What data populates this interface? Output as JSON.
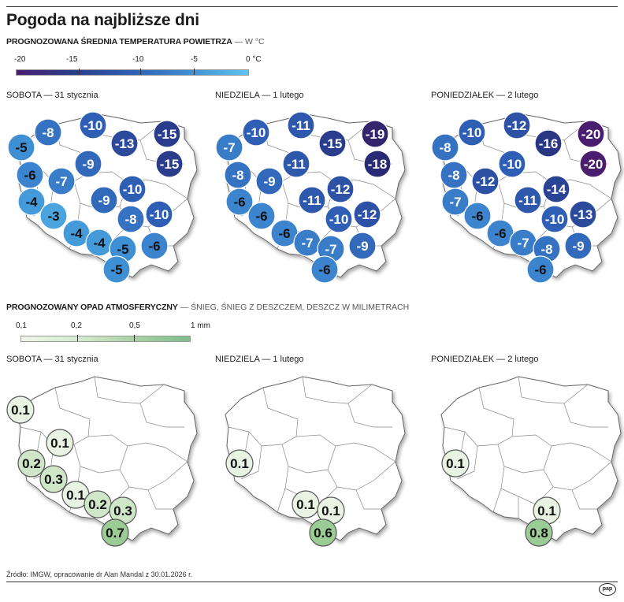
{
  "title": "Pogoda na najbliższe dni",
  "temperature": {
    "heading": "PROGNOZOWANA ŚREDNIA TEMPERATURA POWIETRZA",
    "unit_note": " — W °C",
    "scale_labels": [
      "-20",
      "-15",
      "-10",
      "-5",
      "0 °C"
    ],
    "scale_colors": [
      "#4a1d6e",
      "#2a3c8c",
      "#2f5fb4",
      "#3f8fd4",
      "#5cc4ee"
    ]
  },
  "precipitation": {
    "heading": "PROGNOZOWANY OPAD ATMOSFERYCZNY",
    "unit_note": " — ŚNIEG, ŚNIEG Z DESZCZEM, DESZCZ W MILIMETRACH",
    "scale_labels": [
      "0,1",
      "0,2",
      "0,5",
      "1 mm"
    ],
    "scale_colors": [
      "#eef6ea",
      "#d4ebcf",
      "#a9d3a3",
      "#7fbd8a"
    ]
  },
  "days": [
    {
      "label": "SOBOTA — 31 stycznia"
    },
    {
      "label": "NIEDZIELA — 1 lutego"
    },
    {
      "label": "PONIEDZIAŁEK — 2 lutego"
    }
  ],
  "temp_points": [
    [
      {
        "id": "slupsk",
        "value": "-8"
      },
      {
        "id": "gdansk",
        "value": "-10"
      },
      {
        "id": "olsztyn",
        "value": "-13"
      },
      {
        "id": "suwalki",
        "value": "-15"
      },
      {
        "id": "szczecin",
        "value": "-5"
      },
      {
        "id": "bialystok",
        "value": "-15"
      },
      {
        "id": "gorzow",
        "value": "-6"
      },
      {
        "id": "bydgoszcz",
        "value": "-9"
      },
      {
        "id": "poznan",
        "value": "-7"
      },
      {
        "id": "warszawa",
        "value": "-10"
      },
      {
        "id": "zgora",
        "value": "-4"
      },
      {
        "id": "lodz",
        "value": "-9"
      },
      {
        "id": "siedlce",
        "value": "-10"
      },
      {
        "id": "wroclaw",
        "value": "-3"
      },
      {
        "id": "kielce",
        "value": "-8"
      },
      {
        "id": "jelenia",
        "value": "-4"
      },
      {
        "id": "opole",
        "value": "-4"
      },
      {
        "id": "katowice",
        "value": "-5"
      },
      {
        "id": "rzeszow",
        "value": "-6"
      },
      {
        "id": "zakopane",
        "value": "-5"
      }
    ],
    [
      {
        "id": "slupsk",
        "value": "-10"
      },
      {
        "id": "gdansk",
        "value": "-11"
      },
      {
        "id": "olsztyn",
        "value": "-15"
      },
      {
        "id": "suwalki",
        "value": "-19"
      },
      {
        "id": "szczecin",
        "value": "-7"
      },
      {
        "id": "bialystok",
        "value": "-18"
      },
      {
        "id": "gorzow",
        "value": "-8"
      },
      {
        "id": "bydgoszcz",
        "value": "-11"
      },
      {
        "id": "poznan",
        "value": "-9"
      },
      {
        "id": "warszawa",
        "value": "-12"
      },
      {
        "id": "zgora",
        "value": "-6"
      },
      {
        "id": "lodz",
        "value": "-11"
      },
      {
        "id": "siedlce",
        "value": "-12"
      },
      {
        "id": "wroclaw",
        "value": "-6"
      },
      {
        "id": "kielce",
        "value": "-10"
      },
      {
        "id": "jelenia",
        "value": "-6"
      },
      {
        "id": "opole",
        "value": "-7"
      },
      {
        "id": "katowice",
        "value": "-7"
      },
      {
        "id": "rzeszow",
        "value": "-9"
      },
      {
        "id": "zakopane",
        "value": "-6"
      }
    ],
    [
      {
        "id": "slupsk",
        "value": "-10"
      },
      {
        "id": "gdansk",
        "value": "-12"
      },
      {
        "id": "olsztyn",
        "value": "-16"
      },
      {
        "id": "suwalki",
        "value": "-20"
      },
      {
        "id": "szczecin",
        "value": "-8"
      },
      {
        "id": "bialystok",
        "value": "-20"
      },
      {
        "id": "gorzow",
        "value": "-8"
      },
      {
        "id": "bydgoszcz",
        "value": "-10"
      },
      {
        "id": "poznan",
        "value": "-12"
      },
      {
        "id": "warszawa",
        "value": "-14"
      },
      {
        "id": "zgora",
        "value": "-7"
      },
      {
        "id": "lodz",
        "value": "-11"
      },
      {
        "id": "siedlce",
        "value": "-13"
      },
      {
        "id": "wroclaw",
        "value": "-6"
      },
      {
        "id": "kielce",
        "value": "-10"
      },
      {
        "id": "jelenia",
        "value": "-6"
      },
      {
        "id": "opole",
        "value": "-7"
      },
      {
        "id": "katowice",
        "value": "-8"
      },
      {
        "id": "rzeszow",
        "value": "-9"
      },
      {
        "id": "zakopane",
        "value": "-6"
      }
    ]
  ],
  "precip_points": [
    [
      {
        "id": "p_szczecin",
        "value": "0.1"
      },
      {
        "id": "p_poznan",
        "value": "0.1"
      },
      {
        "id": "p_zgora",
        "value": "0.2"
      },
      {
        "id": "p_wroclaw",
        "value": "0.3"
      },
      {
        "id": "p_opole",
        "value": "0.1"
      },
      {
        "id": "p_katowice",
        "value": "0.2"
      },
      {
        "id": "p_krakow",
        "value": "0.3"
      },
      {
        "id": "p_zakopane",
        "value": "0.7"
      }
    ],
    [
      {
        "id": "p_zgora",
        "value": "0.1"
      },
      {
        "id": "p_katowice",
        "value": "0.1"
      },
      {
        "id": "p_krakow",
        "value": "0.1"
      },
      {
        "id": "p_zakopane",
        "value": "0.6"
      }
    ],
    [
      {
        "id": "p_zgora",
        "value": "0.1"
      },
      {
        "id": "p_krakow",
        "value": "0.1"
      },
      {
        "id": "p_zakopane",
        "value": "0.8"
      }
    ]
  ],
  "source": "Źródło: IMGW, opracowanie  dr Alan Mandal z 30.01.2026 r.",
  "logo_text": "pap"
}
